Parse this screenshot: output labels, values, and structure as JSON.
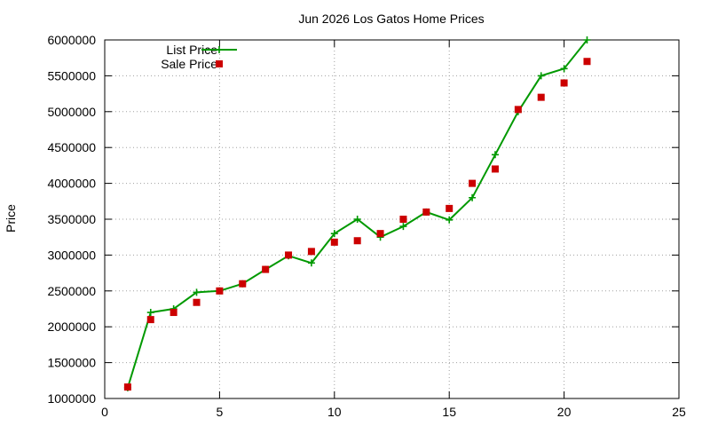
{
  "chart_data": {
    "type": "line",
    "title": "Jun 2026 Los Gatos Home Prices",
    "xlabel": "",
    "ylabel": "Price",
    "xlim": [
      0,
      25
    ],
    "ylim": [
      1000000,
      6000000
    ],
    "x_ticks": [
      0,
      5,
      10,
      15,
      20,
      25
    ],
    "y_ticks": [
      1000000,
      1500000,
      2000000,
      2500000,
      3000000,
      3500000,
      4000000,
      4500000,
      5000000,
      5500000,
      6000000
    ],
    "grid": true,
    "legend_position": "top-left",
    "series": [
      {
        "name": "List Price",
        "style": "line-with-plus-markers",
        "color": "#009900",
        "x": [
          1,
          2,
          3,
          4,
          5,
          6,
          7,
          8,
          9,
          10,
          11,
          12,
          13,
          14,
          15,
          16,
          17,
          18,
          19,
          20,
          21
        ],
        "values": [
          1150000,
          2200000,
          2250000,
          2480000,
          2500000,
          2600000,
          2800000,
          2990000,
          2890000,
          3300000,
          3500000,
          3250000,
          3400000,
          3600000,
          3490000,
          3800000,
          4400000,
          5000000,
          5500000,
          5600000,
          6000000
        ]
      },
      {
        "name": "Sale Price",
        "style": "square-markers",
        "color": "#cc0000",
        "x": [
          1,
          2,
          3,
          4,
          5,
          6,
          7,
          8,
          9,
          10,
          11,
          12,
          13,
          14,
          15,
          16,
          17,
          18,
          19,
          20,
          21
        ],
        "values": [
          1160000,
          2100000,
          2200000,
          2340000,
          2500000,
          2600000,
          2800000,
          3000000,
          3050000,
          3180000,
          3200000,
          3300000,
          3500000,
          3600000,
          3650000,
          4000000,
          4200000,
          5030000,
          5200000,
          5400000,
          5700000
        ]
      }
    ]
  }
}
